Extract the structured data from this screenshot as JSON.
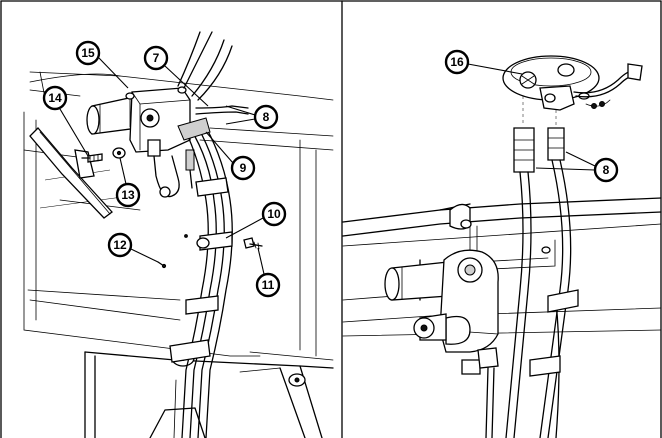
{
  "left_panel": {
    "callouts": {
      "c15": "15",
      "c7": "7",
      "c14": "14",
      "c8": "8",
      "c9": "9",
      "c13": "13",
      "c10": "10",
      "c12": "12",
      "c11": "11"
    }
  },
  "right_panel": {
    "callouts": {
      "c16": "16",
      "c8": "8"
    }
  }
}
